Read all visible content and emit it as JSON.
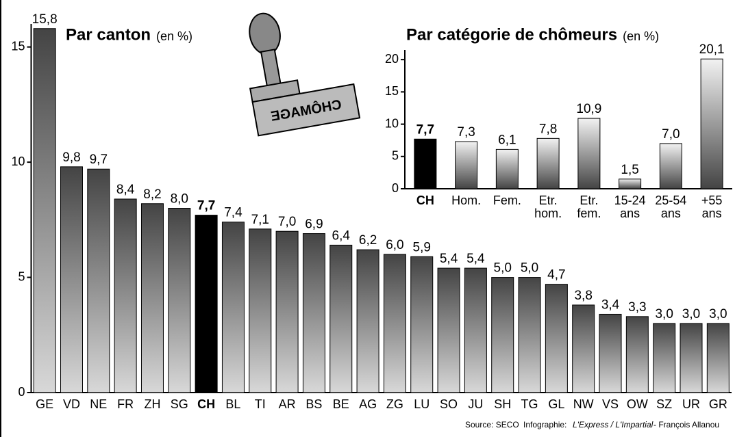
{
  "chart_data": [
    {
      "type": "bar",
      "title": "Par canton",
      "subtitle": "(en %)",
      "categories": [
        "GE",
        "VD",
        "NE",
        "FR",
        "ZH",
        "SG",
        "CH",
        "BL",
        "TI",
        "AR",
        "BS",
        "BE",
        "AG",
        "ZG",
        "LU",
        "SO",
        "JU",
        "SH",
        "TG",
        "GL",
        "NW",
        "VS",
        "OW",
        "SZ",
        "UR",
        "GR"
      ],
      "values": [
        15.8,
        9.8,
        9.7,
        8.4,
        8.2,
        8.0,
        7.7,
        7.4,
        7.1,
        7.0,
        6.9,
        6.4,
        6.2,
        6.0,
        5.9,
        5.4,
        5.4,
        5.0,
        5.0,
        4.7,
        3.8,
        3.4,
        3.3,
        3.0,
        3.0,
        3.0
      ],
      "value_labels": [
        "15,8",
        "9,8",
        "9,7",
        "8,4",
        "8,2",
        "8,0",
        "7,7",
        "7,4",
        "7,1",
        "7,0",
        "6,9",
        "6,4",
        "6,2",
        "6,0",
        "5,9",
        "5,4",
        "5,4",
        "5,0",
        "5,0",
        "4,7",
        "3,8",
        "3,4",
        "3,3",
        "3,0",
        "3,0",
        "3,0"
      ],
      "colors": [
        "#444444",
        "#444444",
        "#444444",
        "#444444",
        "#444444",
        "#444444",
        "#000000",
        "#444444",
        "#444444",
        "#444444",
        "#444444",
        "#444444",
        "#444444",
        "#444444",
        "#444444",
        "#444444",
        "#444444",
        "#444444",
        "#444444",
        "#444444",
        "#444444",
        "#444444",
        "#444444",
        "#444444",
        "#444444",
        "#444444"
      ],
      "ylim": [
        0,
        16
      ],
      "yticks": [
        0,
        5,
        10,
        15
      ]
    },
    {
      "type": "bar",
      "title": "Par catégorie de chômeurs",
      "subtitle": "(en %)",
      "categories": [
        [
          "CH"
        ],
        [
          "Hom."
        ],
        [
          "Fem."
        ],
        [
          "Etr.",
          "hom."
        ],
        [
          "Etr.",
          "fem."
        ],
        [
          "15-24",
          "ans"
        ],
        [
          "25-54",
          "ans"
        ],
        [
          "+55",
          "ans"
        ]
      ],
      "values": [
        7.7,
        7.3,
        6.1,
        7.8,
        10.9,
        1.5,
        7.0,
        20.1
      ],
      "value_labels": [
        "7,7",
        "7,3",
        "6,1",
        "7,8",
        "10,9",
        "1,5",
        "7,0",
        "20,1"
      ],
      "colors": [
        "#000000",
        "#444444",
        "#444444",
        "#444444",
        "#444444",
        "#444444",
        "#444444",
        "#444444"
      ],
      "ylim": [
        0,
        21.5
      ],
      "yticks": [
        0,
        5,
        10,
        15,
        20
      ]
    }
  ],
  "stamp_text": "CHÔMAGE",
  "footer": {
    "source": "Source: SECO",
    "credit_label": "Infographie:",
    "credit_pubs": "L'Express / L'Impartial",
    "credit_author": "- François Allanou"
  }
}
